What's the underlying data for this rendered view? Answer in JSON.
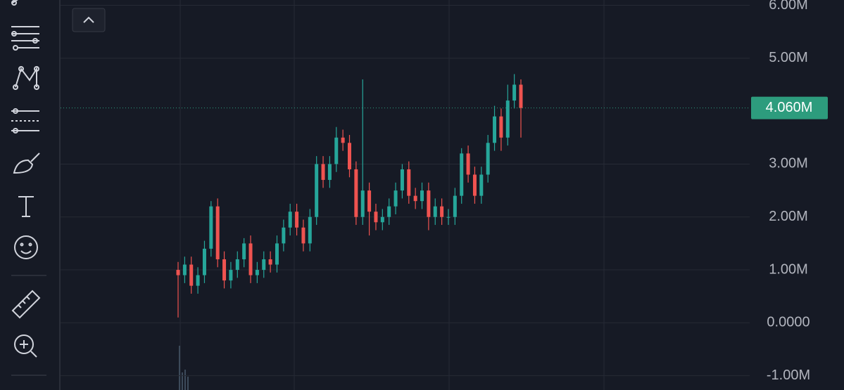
{
  "chart_data": {
    "type": "candlestick",
    "ylim": [
      -1270000,
      6100000
    ],
    "yticks": [
      {
        "value": 6000000,
        "label": "6.00M"
      },
      {
        "value": 5000000,
        "label": "5.00M"
      },
      {
        "value": 3000000,
        "label": "3.00M"
      },
      {
        "value": 2000000,
        "label": "2.00M"
      },
      {
        "value": 1000000,
        "label": "1.00M"
      },
      {
        "value": 0,
        "label": "0.0000"
      },
      {
        "value": -1000000,
        "label": "-1.00M"
      }
    ],
    "grid": true,
    "up_color": "#26a69a",
    "down_color": "#ef5350",
    "last_price": {
      "value": 4060000,
      "label": "4.060M",
      "color": "#2d9c7d"
    },
    "open": [
      1000000,
      900000,
      1100000,
      700000,
      900000,
      1400000,
      2200000,
      1200000,
      800000,
      1000000,
      1200000,
      1500000,
      900000,
      1000000,
      1200000,
      1100000,
      1500000,
      1800000,
      2100000,
      1800000,
      1500000,
      2000000,
      3000000,
      2700000,
      3000000,
      3500000,
      3400000,
      2900000,
      2000000,
      2500000,
      2100000,
      1900000,
      2000000,
      2200000,
      2500000,
      2900000,
      2400000,
      2300000,
      2500000,
      2000000,
      2200000,
      2000000,
      2000000,
      2400000,
      3200000,
      2800000,
      2400000,
      2800000,
      3400000,
      3900000,
      3500000,
      4200000,
      4500000
    ],
    "high": [
      1150000,
      1250000,
      1250000,
      1050000,
      1550000,
      2300000,
      2350000,
      1350000,
      1150000,
      1350000,
      1600000,
      1650000,
      1150000,
      1350000,
      1350000,
      1650000,
      1950000,
      2250000,
      2250000,
      1950000,
      2150000,
      3150000,
      3150000,
      3150000,
      3700000,
      3650000,
      3550000,
      3050000,
      4600000,
      2650000,
      2250000,
      2150000,
      2350000,
      2650000,
      3000000,
      3050000,
      2550000,
      2650000,
      2650000,
      2350000,
      2350000,
      2150000,
      2550000,
      3300000,
      3350000,
      2950000,
      2950000,
      3550000,
      4100000,
      4050000,
      4500000,
      4700000,
      4600000
    ],
    "low": [
      100000,
      750000,
      550000,
      550000,
      750000,
      1250000,
      1050000,
      650000,
      650000,
      850000,
      1050000,
      750000,
      750000,
      850000,
      950000,
      950000,
      1350000,
      1650000,
      1650000,
      1350000,
      1350000,
      1850000,
      2550000,
      2550000,
      2850000,
      3250000,
      2750000,
      1850000,
      1850000,
      1650000,
      1750000,
      1750000,
      1850000,
      2050000,
      2350000,
      2250000,
      2150000,
      2150000,
      1750000,
      1850000,
      1850000,
      1850000,
      1850000,
      2250000,
      2650000,
      2250000,
      2250000,
      2650000,
      3250000,
      3250000,
      3350000,
      4050000,
      3500000
    ],
    "close": [
      900000,
      1100000,
      700000,
      900000,
      1400000,
      2200000,
      1200000,
      800000,
      1000000,
      1200000,
      1500000,
      900000,
      1000000,
      1200000,
      1100000,
      1500000,
      1800000,
      2100000,
      1800000,
      1500000,
      2000000,
      3000000,
      2700000,
      3000000,
      3500000,
      3400000,
      2900000,
      2000000,
      2500000,
      2100000,
      1900000,
      2000000,
      2200000,
      2500000,
      2900000,
      2400000,
      2300000,
      2500000,
      2000000,
      2200000,
      2000000,
      2000000,
      2400000,
      3200000,
      2800000,
      2400000,
      2800000,
      3400000,
      3900000,
      3500000,
      4200000,
      4500000,
      4060000
    ]
  }
}
